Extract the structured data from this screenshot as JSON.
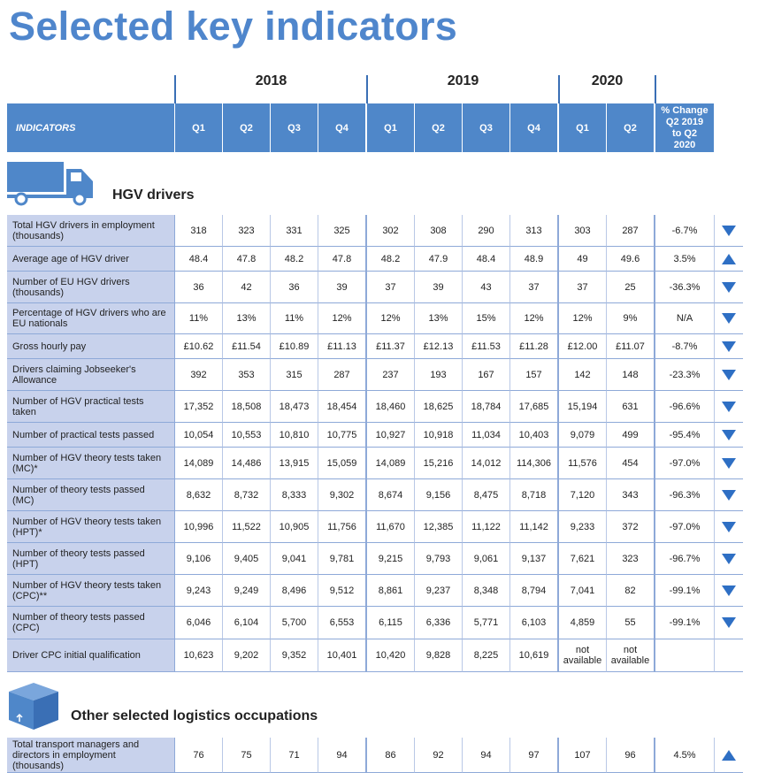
{
  "title": "Selected key indicators",
  "years": [
    "2018",
    "2019",
    "2020"
  ],
  "header": {
    "indicators": "INDICATORS",
    "quarters": [
      "Q1",
      "Q2",
      "Q3",
      "Q4",
      "Q1",
      "Q2",
      "Q3",
      "Q4",
      "Q1",
      "Q2"
    ],
    "change": "% Change Q2 2019 to Q2 2020"
  },
  "sections": [
    {
      "title": "HGV drivers",
      "rows": [
        {
          "label": "Total HGV drivers in employment (thousands)",
          "values": [
            "318",
            "323",
            "331",
            "325",
            "302",
            "308",
            "290",
            "313",
            "303",
            "287"
          ],
          "change": "-6.7%",
          "trend": "down"
        },
        {
          "label": "Average age of HGV driver",
          "values": [
            "48.4",
            "47.8",
            "48.2",
            "47.8",
            "48.2",
            "47.9",
            "48.4",
            "48.9",
            "49",
            "49.6"
          ],
          "change": "3.5%",
          "trend": "up"
        },
        {
          "label": "Number of EU HGV drivers (thousands)",
          "values": [
            "36",
            "42",
            "36",
            "39",
            "37",
            "39",
            "43",
            "37",
            "37",
            "25"
          ],
          "change": "-36.3%",
          "trend": "down"
        },
        {
          "label": "Percentage of HGV drivers who are EU nationals",
          "values": [
            "11%",
            "13%",
            "11%",
            "12%",
            "12%",
            "13%",
            "15%",
            "12%",
            "12%",
            "9%"
          ],
          "change": "N/A",
          "trend": "down"
        },
        {
          "label": "Gross hourly pay",
          "values": [
            "£10.62",
            "£11.54",
            "£10.89",
            "£11.13",
            "£11.37",
            "£12.13",
            "£11.53",
            "£11.28",
            "£12.00",
            "£11.07"
          ],
          "change": "-8.7%",
          "trend": "down"
        },
        {
          "label": "Drivers claiming Jobseeker's Allowance",
          "values": [
            "392",
            "353",
            "315",
            "287",
            "237",
            "193",
            "167",
            "157",
            "142",
            "148"
          ],
          "change": "-23.3%",
          "trend": "down"
        },
        {
          "label": "Number of HGV practical tests taken",
          "values": [
            "17,352",
            "18,508",
            "18,473",
            "18,454",
            "18,460",
            "18,625",
            "18,784",
            "17,685",
            "15,194",
            "631"
          ],
          "change": "-96.6%",
          "trend": "down"
        },
        {
          "label": "Number of practical tests passed",
          "values": [
            "10,054",
            "10,553",
            "10,810",
            "10,775",
            "10,927",
            "10,918",
            "11,034",
            "10,403",
            "9,079",
            "499"
          ],
          "change": "-95.4%",
          "trend": "down"
        },
        {
          "label": "Number of HGV theory tests taken (MC)*",
          "values": [
            "14,089",
            "14,486",
            "13,915",
            "15,059",
            "14,089",
            "15,216",
            "14,012",
            "114,306",
            "11,576",
            "454"
          ],
          "change": "-97.0%",
          "trend": "down"
        },
        {
          "label": "Number of theory tests passed (MC)",
          "values": [
            "8,632",
            "8,732",
            "8,333",
            "9,302",
            "8,674",
            "9,156",
            "8,475",
            "8,718",
            "7,120",
            "343"
          ],
          "change": "-96.3%",
          "trend": "down"
        },
        {
          "label": "Number of HGV theory tests taken (HPT)*",
          "values": [
            "10,996",
            "11,522",
            "10,905",
            "11,756",
            "11,670",
            "12,385",
            "11,122",
            "11,142",
            "9,233",
            "372"
          ],
          "change": "-97.0%",
          "trend": "down"
        },
        {
          "label": "Number of theory tests passed (HPT)",
          "values": [
            "9,106",
            "9,405",
            "9,041",
            "9,781",
            "9,215",
            "9,793",
            "9,061",
            "9,137",
            "7,621",
            "323"
          ],
          "change": "-96.7%",
          "trend": "down"
        },
        {
          "label": "Number of HGV theory tests taken (CPC)**",
          "values": [
            "9,243",
            "9,249",
            "8,496",
            "9,512",
            "8,861",
            "9,237",
            "8,348",
            "8,794",
            "7,041",
            "82"
          ],
          "change": "-99.1%",
          "trend": "down"
        },
        {
          "label": "Number of theory tests passed (CPC)",
          "values": [
            "6,046",
            "6,104",
            "5,700",
            "6,553",
            "6,115",
            "6,336",
            "5,771",
            "6,103",
            "4,859",
            "55"
          ],
          "change": "-99.1%",
          "trend": "down"
        },
        {
          "label": "Driver CPC initial qualification",
          "values": [
            "10,623",
            "9,202",
            "9,352",
            "10,401",
            "10,420",
            "9,828",
            "8,225",
            "10,619",
            "not available",
            "not available"
          ]
        }
      ]
    },
    {
      "title": "Other selected logistics occupations",
      "rows": [
        {
          "label": "Total transport managers and directors in employment (thousands)",
          "values": [
            "76",
            "75",
            "71",
            "94",
            "86",
            "92",
            "94",
            "97",
            "107",
            "96"
          ],
          "change": "4.5%",
          "trend": "up"
        }
      ]
    }
  ]
}
